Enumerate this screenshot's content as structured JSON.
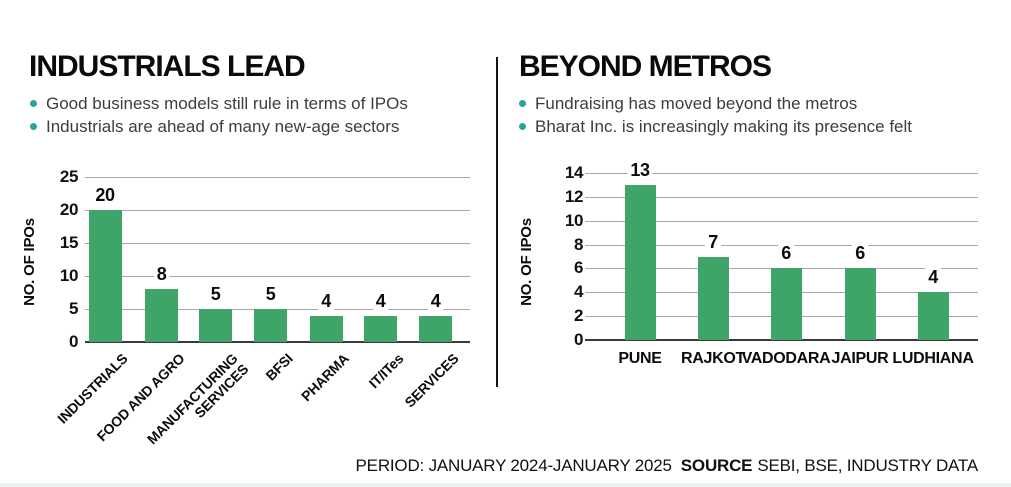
{
  "colors": {
    "bar_green": "#3ea467",
    "bullet_teal": "#26a69a",
    "gridline": "#a9a9a9",
    "axis_line": "#3a3a3a",
    "divider": "#141414",
    "title_text": "#0b0b0b",
    "body_text": "#3d3d3d",
    "bottom_strip": "#eef1f2"
  },
  "chart_data": [
    {
      "type": "bar",
      "title": "INDUSTRIALS LEAD",
      "bullets": [
        "Good business models still rule in terms of IPOs",
        "Industrials are ahead of many new-age sectors"
      ],
      "ylabel": "NO. OF IPOs",
      "xlabel": "",
      "ylim": [
        0,
        25
      ],
      "yticks": [
        0,
        5,
        10,
        15,
        20,
        25
      ],
      "grid": true,
      "legend_position": "none",
      "categories": [
        "INDUSTRIALS",
        "FOOD AND AGRO",
        "MANUFACTURING\nSERVICES",
        "BFSI",
        "PHARMA",
        "IT/ITes",
        "SERVICES"
      ],
      "values": [
        20,
        8,
        5,
        5,
        4,
        4,
        4
      ]
    },
    {
      "type": "bar",
      "title": "BEYOND METROS",
      "bullets": [
        "Fundraising has moved beyond the metros",
        "Bharat Inc. is increasingly making its presence felt"
      ],
      "ylabel": "NO. OF IPOs",
      "xlabel": "",
      "ylim": [
        0,
        14
      ],
      "yticks": [
        0,
        2,
        4,
        6,
        8,
        10,
        12,
        14
      ],
      "grid": true,
      "legend_position": "none",
      "categories": [
        "PUNE",
        "RAJKOT",
        "VADODARA",
        "JAIPUR",
        "LUDHIANA"
      ],
      "values": [
        13,
        7,
        6,
        6,
        4
      ]
    }
  ],
  "footer": {
    "period": "PERIOD: JANUARY 2024-JANUARY 2025",
    "source_label": "SOURCE",
    "source_text": "SEBI, BSE, INDUSTRY DATA"
  }
}
